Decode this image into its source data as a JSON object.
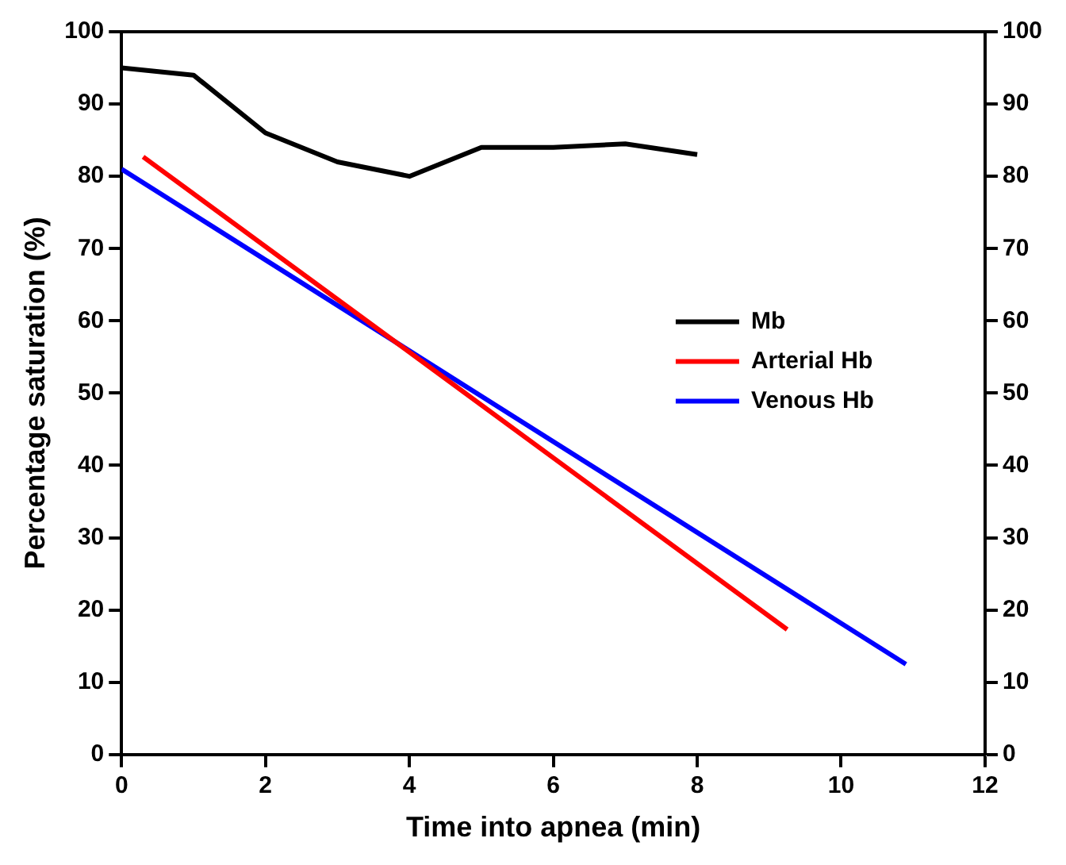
{
  "chart_data": {
    "type": "line",
    "xlabel": "Time into apnea (min)",
    "ylabel": "Percentage saturation (%)",
    "xlim": [
      0,
      12
    ],
    "xticks": [
      0,
      2,
      4,
      6,
      8,
      10,
      12
    ],
    "ylim": [
      0,
      100
    ],
    "yticks": [
      0,
      10,
      20,
      30,
      40,
      50,
      60,
      70,
      80,
      90,
      100
    ],
    "y2lim": [
      0,
      100
    ],
    "y2ticks": [
      0,
      10,
      20,
      30,
      40,
      50,
      60,
      70,
      80,
      90,
      100
    ],
    "grid": false,
    "legend": "right",
    "marker": "none",
    "line_style": "solid",
    "series": [
      {
        "name": "Mb",
        "color": "#000000",
        "x": [
          0,
          1,
          2,
          3,
          4,
          5,
          6,
          7,
          8
        ],
        "values": [
          95,
          94,
          86,
          82,
          80,
          84,
          84,
          84.5,
          83
        ]
      },
      {
        "name": "Arterial Hb",
        "color": "#ff0000",
        "x": [
          0.3,
          9.25
        ],
        "values": [
          82.7,
          17.3
        ]
      },
      {
        "name": "Venous Hb",
        "color": "#0000ff",
        "x": [
          0,
          10.9
        ],
        "values": [
          81,
          12.5
        ]
      }
    ]
  }
}
